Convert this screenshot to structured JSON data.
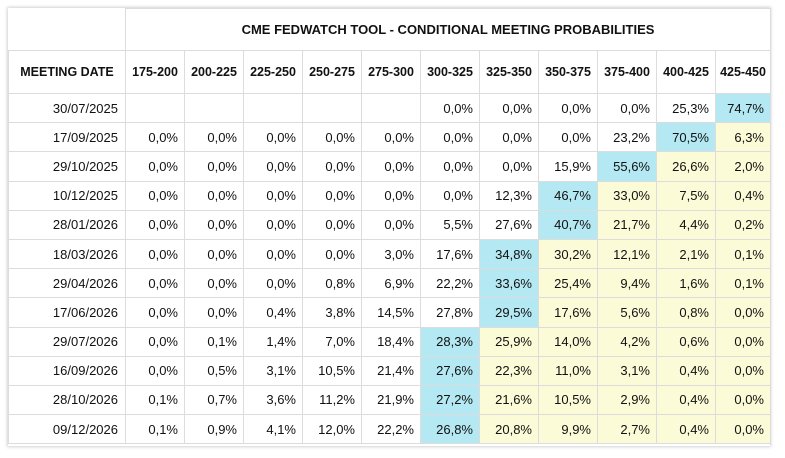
{
  "title": "CME FEDWATCH TOOL - CONDITIONAL MEETING PROBABILITIES",
  "date_header": "MEETING DATE",
  "columns": [
    "175-200",
    "200-225",
    "225-250",
    "250-275",
    "275-300",
    "300-325",
    "325-350",
    "350-375",
    "375-400",
    "400-425",
    "425-450"
  ],
  "highlight_colors": {
    "most_likely": "#b4e8f2",
    "above_most_likely": "#fbfbd8"
  },
  "rows": [
    {
      "date": "30/07/2025",
      "values": [
        "",
        "",
        "",
        "",
        "",
        "0,0%",
        "0,0%",
        "0,0%",
        "0,0%",
        "25,3%",
        "74,7%"
      ],
      "max_index": 10
    },
    {
      "date": "17/09/2025",
      "values": [
        "0,0%",
        "0,0%",
        "0,0%",
        "0,0%",
        "0,0%",
        "0,0%",
        "0,0%",
        "0,0%",
        "23,2%",
        "70,5%",
        "6,3%"
      ],
      "max_index": 9
    },
    {
      "date": "29/10/2025",
      "values": [
        "0,0%",
        "0,0%",
        "0,0%",
        "0,0%",
        "0,0%",
        "0,0%",
        "0,0%",
        "15,9%",
        "55,6%",
        "26,6%",
        "2,0%"
      ],
      "max_index": 8
    },
    {
      "date": "10/12/2025",
      "values": [
        "0,0%",
        "0,0%",
        "0,0%",
        "0,0%",
        "0,0%",
        "0,0%",
        "12,3%",
        "46,7%",
        "33,0%",
        "7,5%",
        "0,4%"
      ],
      "max_index": 7
    },
    {
      "date": "28/01/2026",
      "values": [
        "0,0%",
        "0,0%",
        "0,0%",
        "0,0%",
        "0,0%",
        "5,5%",
        "27,6%",
        "40,7%",
        "21,7%",
        "4,4%",
        "0,2%"
      ],
      "max_index": 7
    },
    {
      "date": "18/03/2026",
      "values": [
        "0,0%",
        "0,0%",
        "0,0%",
        "0,0%",
        "3,0%",
        "17,6%",
        "34,8%",
        "30,2%",
        "12,1%",
        "2,1%",
        "0,1%"
      ],
      "max_index": 6
    },
    {
      "date": "29/04/2026",
      "values": [
        "0,0%",
        "0,0%",
        "0,0%",
        "0,8%",
        "6,9%",
        "22,2%",
        "33,6%",
        "25,4%",
        "9,4%",
        "1,6%",
        "0,1%"
      ],
      "max_index": 6
    },
    {
      "date": "17/06/2026",
      "values": [
        "0,0%",
        "0,0%",
        "0,4%",
        "3,8%",
        "14,5%",
        "27,8%",
        "29,5%",
        "17,6%",
        "5,6%",
        "0,8%",
        "0,0%"
      ],
      "max_index": 6
    },
    {
      "date": "29/07/2026",
      "values": [
        "0,0%",
        "0,1%",
        "1,4%",
        "7,0%",
        "18,4%",
        "28,3%",
        "25,9%",
        "14,0%",
        "4,2%",
        "0,6%",
        "0,0%"
      ],
      "max_index": 5
    },
    {
      "date": "16/09/2026",
      "values": [
        "0,0%",
        "0,5%",
        "3,1%",
        "10,5%",
        "21,4%",
        "27,6%",
        "22,3%",
        "11,0%",
        "3,1%",
        "0,4%",
        "0,0%"
      ],
      "max_index": 5
    },
    {
      "date": "28/10/2026",
      "values": [
        "0,1%",
        "0,7%",
        "3,6%",
        "11,2%",
        "21,9%",
        "27,2%",
        "21,6%",
        "10,5%",
        "2,9%",
        "0,4%",
        "0,0%"
      ],
      "max_index": 5
    },
    {
      "date": "09/12/2026",
      "values": [
        "0,1%",
        "0,9%",
        "4,1%",
        "12,0%",
        "22,2%",
        "26,8%",
        "20,8%",
        "9,9%",
        "2,7%",
        "0,4%",
        "0,0%"
      ],
      "max_index": 5
    }
  ]
}
